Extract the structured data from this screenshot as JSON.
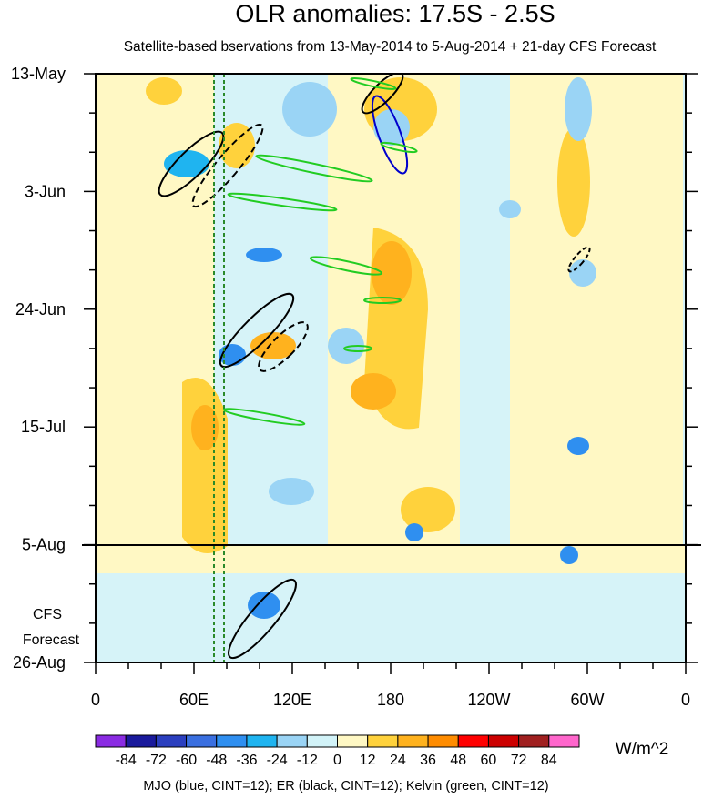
{
  "chart_data": {
    "type": "heatmap",
    "title": "OLR anomalies: 17.5S - 2.5S",
    "subtitle": "Satellite-based bservations from 13-May-2014 to 5-Aug-2014 + 21-day CFS Forecast",
    "x_ticks": [
      "0",
      "60E",
      "120E",
      "180",
      "120W",
      "60W",
      "0"
    ],
    "y_ticks": [
      "13-May",
      "3-Jun",
      "24-Jun",
      "15-Jul",
      "5-Aug",
      "26-Aug"
    ],
    "forecast_label": [
      "CFS",
      "Forecast"
    ],
    "colorbar_labels": [
      "-84",
      "-72",
      "-60",
      "-48",
      "-36",
      "-24",
      "-12",
      "0",
      "12",
      "24",
      "36",
      "48",
      "60",
      "72",
      "84"
    ],
    "colorbar_colors": [
      "#8a2be2",
      "#1a1a9c",
      "#2b3fbf",
      "#3a6fe0",
      "#2f8ff0",
      "#1fb4f0",
      "#9ad4f5",
      "#d2f3f8",
      "#fff8c4",
      "#ffd23c",
      "#ffb21e",
      "#ff8c00",
      "#ff0000",
      "#cc0000",
      "#a02020",
      "#ff66cc"
    ],
    "units": "W/m^2",
    "footnote": "MJO (blue, CINT=12); ER (black, CINT=12); Kelvin (green, CINT=12)",
    "background_color": "#d6f3f8",
    "positive_color": "#ffd23c",
    "negative_color": "#1fb4f0"
  }
}
